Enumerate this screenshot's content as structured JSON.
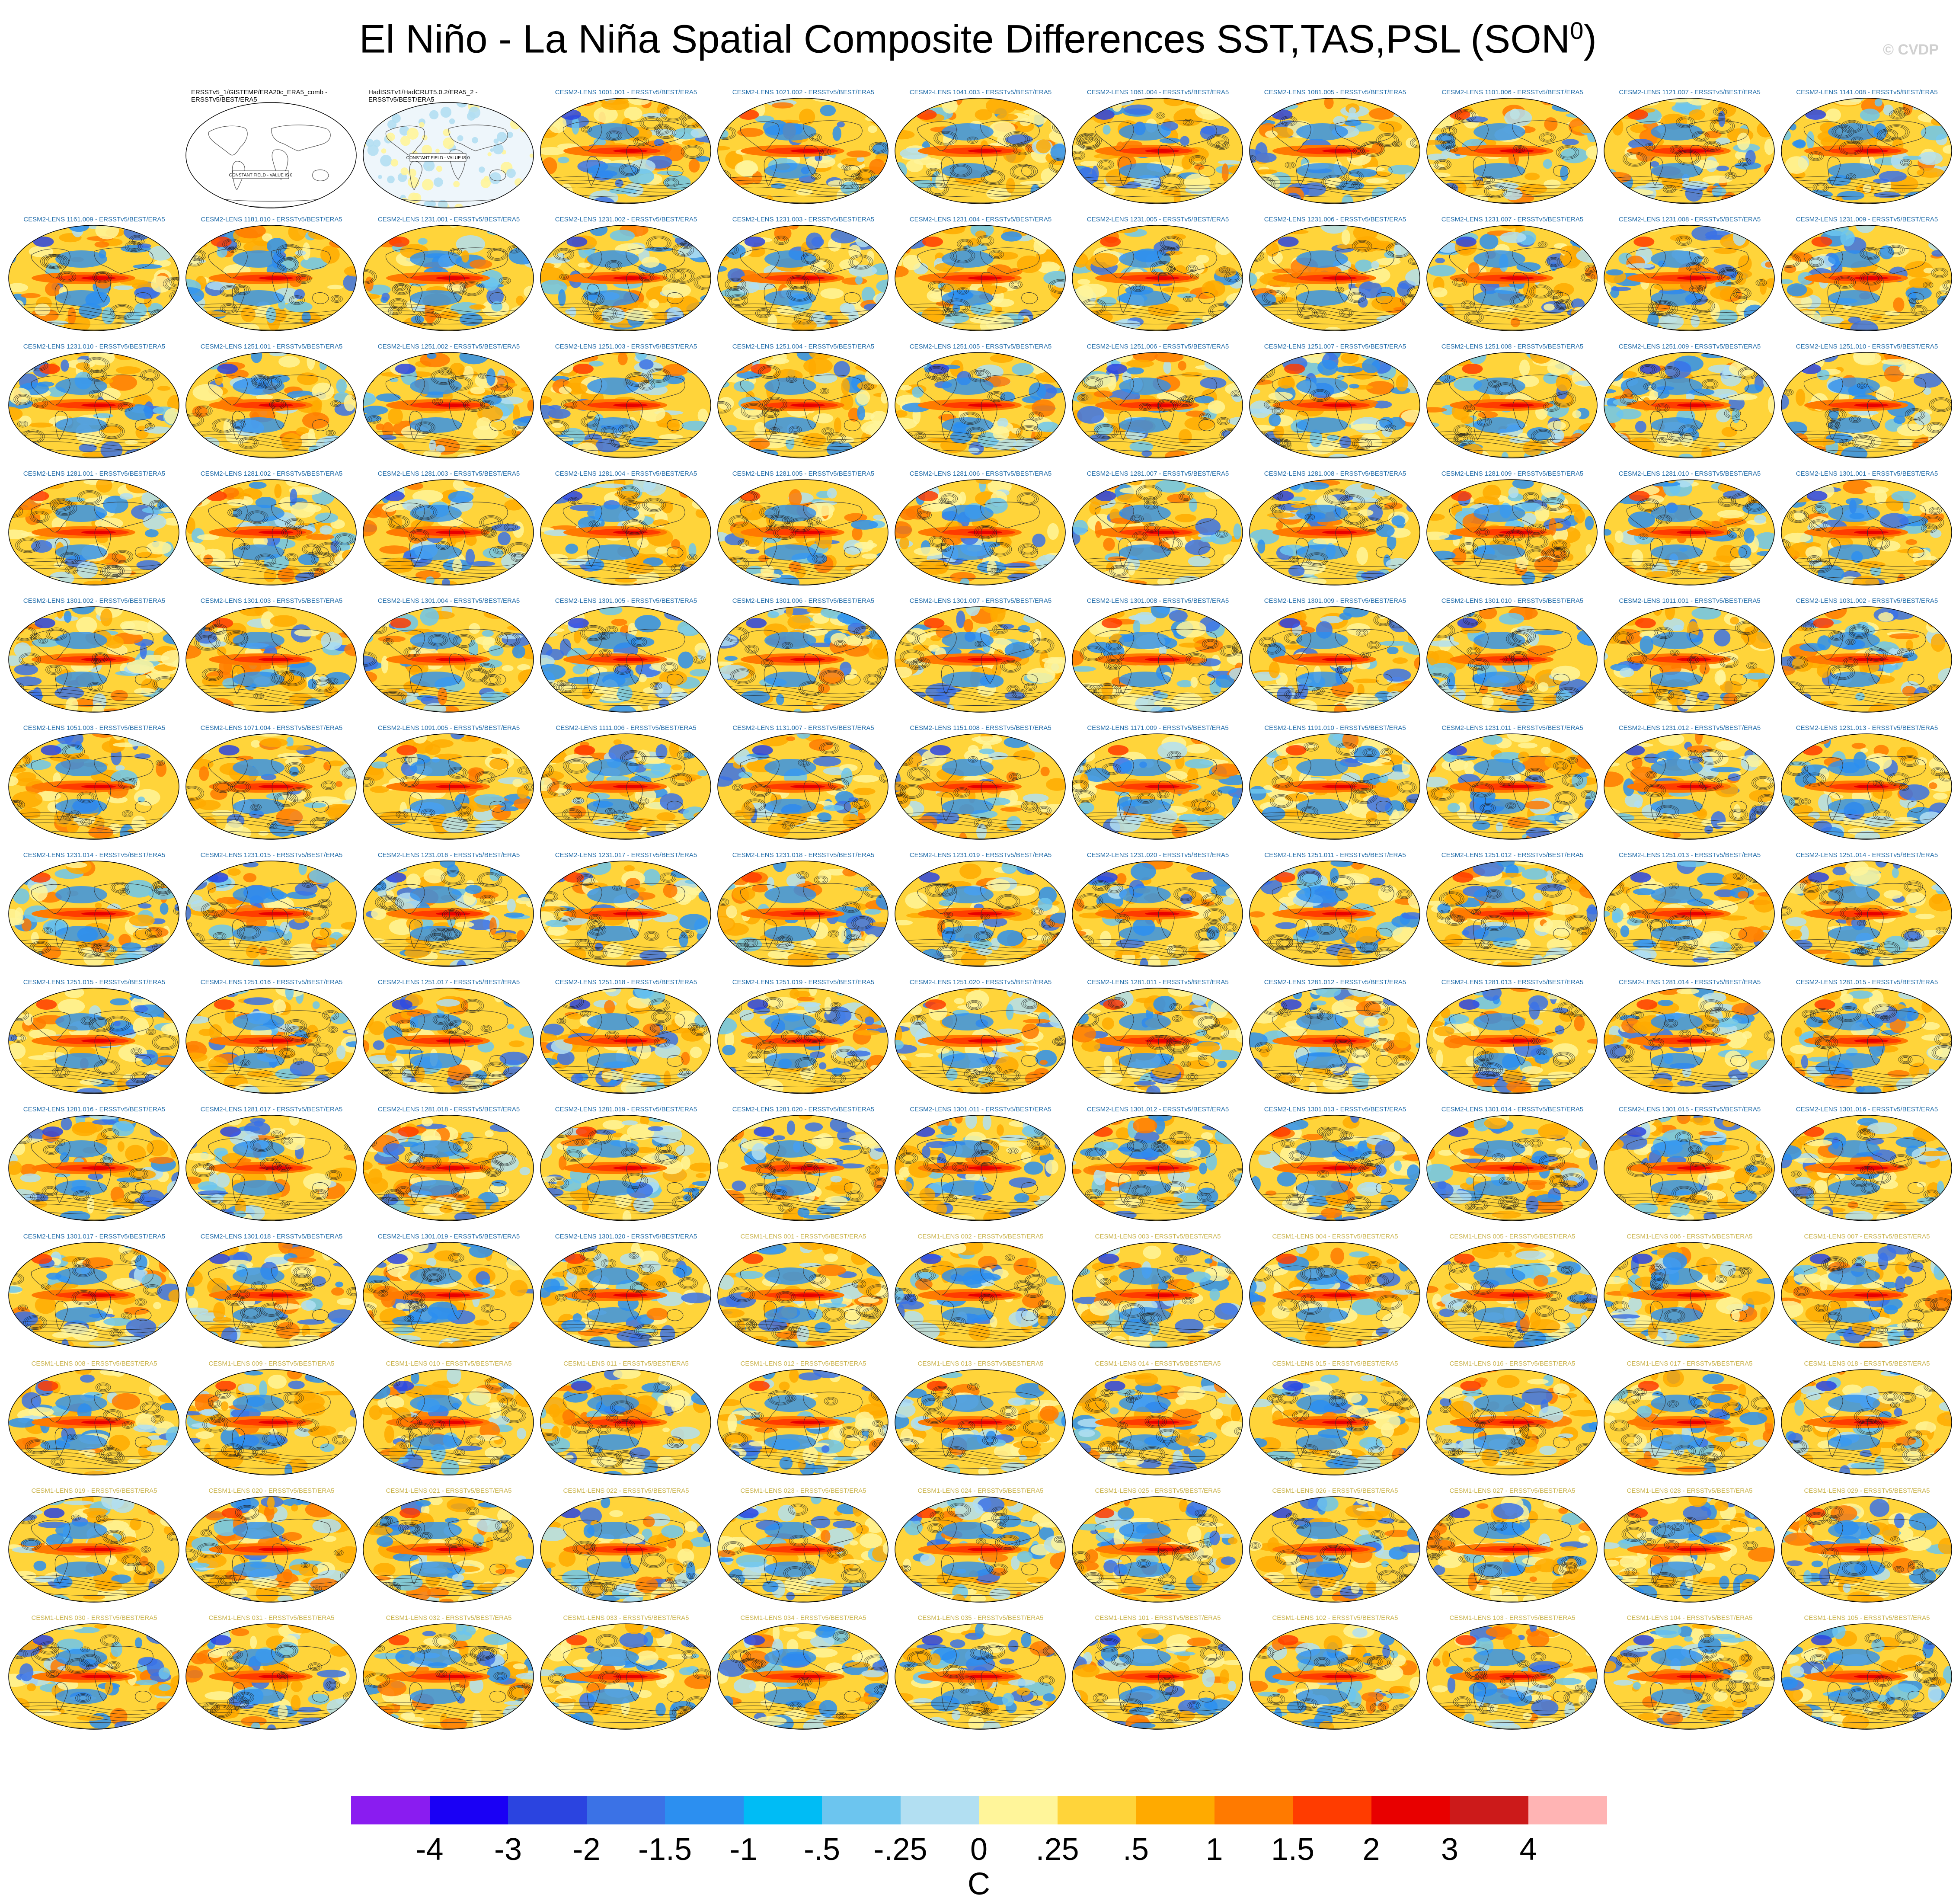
{
  "title": "El Niño - La Niña Spatial Composite Differences SST,TAS,PSL (SON",
  "title_superscript": "0",
  "title_suffix": ")",
  "watermark": "© CVDP",
  "chart_data": {
    "type": "heatmap",
    "title": "El Niño - La Niña Spatial Composite Differences SST,TAS,PSL (SON0)",
    "panels": [
      {
        "label": "",
        "kind": "blank"
      },
      {
        "label": "ERSSTv5_1/GISTEMP/ERA20c_ERA5_comb - ERSSTv5/BEST/ERA5",
        "kind": "obs",
        "note": "CONSTANT FIELD - VALUE IS 0"
      },
      {
        "label": "HadISSTv1/HadCRUT5.0.2/ERA5_2 - ERSSTv5/BEST/ERA5",
        "kind": "obs2",
        "note": "CONSTANT FIELD - VALUE IS 0"
      },
      {
        "label": "CESM2-LENS 1001.001 - ERSSTv5/BEST/ERA5",
        "kind": "cesm2"
      },
      {
        "label": "CESM2-LENS 1021.002 - ERSSTv5/BEST/ERA5",
        "kind": "cesm2"
      },
      {
        "label": "CESM2-LENS 1041.003 - ERSSTv5/BEST/ERA5",
        "kind": "cesm2"
      },
      {
        "label": "CESM2-LENS 1061.004 - ERSSTv5/BEST/ERA5",
        "kind": "cesm2"
      },
      {
        "label": "CESM2-LENS 1081.005 - ERSSTv5/BEST/ERA5",
        "kind": "cesm2"
      },
      {
        "label": "CESM2-LENS 1101.006 - ERSSTv5/BEST/ERA5",
        "kind": "cesm2"
      },
      {
        "label": "CESM2-LENS 1121.007 - ERSSTv5/BEST/ERA5",
        "kind": "cesm2"
      },
      {
        "label": "CESM2-LENS 1141.008 - ERSSTv5/BEST/ERA5",
        "kind": "cesm2"
      },
      {
        "label": "CESM2-LENS 1161.009 - ERSSTv5/BEST/ERA5",
        "kind": "cesm2"
      },
      {
        "label": "CESM2-LENS 1181.010 - ERSSTv5/BEST/ERA5",
        "kind": "cesm2"
      },
      {
        "label": "CESM2-LENS 1231.001 - ERSSTv5/BEST/ERA5",
        "kind": "cesm2"
      },
      {
        "label": "CESM2-LENS 1231.002 - ERSSTv5/BEST/ERA5",
        "kind": "cesm2"
      },
      {
        "label": "CESM2-LENS 1231.003 - ERSSTv5/BEST/ERA5",
        "kind": "cesm2"
      },
      {
        "label": "CESM2-LENS 1231.004 - ERSSTv5/BEST/ERA5",
        "kind": "cesm2"
      },
      {
        "label": "CESM2-LENS 1231.005 - ERSSTv5/BEST/ERA5",
        "kind": "cesm2"
      },
      {
        "label": "CESM2-LENS 1231.006 - ERSSTv5/BEST/ERA5",
        "kind": "cesm2"
      },
      {
        "label": "CESM2-LENS 1231.007 - ERSSTv5/BEST/ERA5",
        "kind": "cesm2"
      },
      {
        "label": "CESM2-LENS 1231.008 - ERSSTv5/BEST/ERA5",
        "kind": "cesm2"
      },
      {
        "label": "CESM2-LENS 1231.009 - ERSSTv5/BEST/ERA5",
        "kind": "cesm2"
      },
      {
        "label": "CESM2-LENS 1231.010 - ERSSTv5/BEST/ERA5",
        "kind": "cesm2"
      },
      {
        "label": "CESM2-LENS 1251.001 - ERSSTv5/BEST/ERA5",
        "kind": "cesm2"
      },
      {
        "label": "CESM2-LENS 1251.002 - ERSSTv5/BEST/ERA5",
        "kind": "cesm2"
      },
      {
        "label": "CESM2-LENS 1251.003 - ERSSTv5/BEST/ERA5",
        "kind": "cesm2"
      },
      {
        "label": "CESM2-LENS 1251.004 - ERSSTv5/BEST/ERA5",
        "kind": "cesm2"
      },
      {
        "label": "CESM2-LENS 1251.005 - ERSSTv5/BEST/ERA5",
        "kind": "cesm2"
      },
      {
        "label": "CESM2-LENS 1251.006 - ERSSTv5/BEST/ERA5",
        "kind": "cesm2"
      },
      {
        "label": "CESM2-LENS 1251.007 - ERSSTv5/BEST/ERA5",
        "kind": "cesm2"
      },
      {
        "label": "CESM2-LENS 1251.008 - ERSSTv5/BEST/ERA5",
        "kind": "cesm2"
      },
      {
        "label": "CESM2-LENS 1251.009 - ERSSTv5/BEST/ERA5",
        "kind": "cesm2"
      },
      {
        "label": "CESM2-LENS 1251.010 - ERSSTv5/BEST/ERA5",
        "kind": "cesm2"
      },
      {
        "label": "CESM2-LENS 1281.001 - ERSSTv5/BEST/ERA5",
        "kind": "cesm2"
      },
      {
        "label": "CESM2-LENS 1281.002 - ERSSTv5/BEST/ERA5",
        "kind": "cesm2"
      },
      {
        "label": "CESM2-LENS 1281.003 - ERSSTv5/BEST/ERA5",
        "kind": "cesm2"
      },
      {
        "label": "CESM2-LENS 1281.004 - ERSSTv5/BEST/ERA5",
        "kind": "cesm2"
      },
      {
        "label": "CESM2-LENS 1281.005 - ERSSTv5/BEST/ERA5",
        "kind": "cesm2"
      },
      {
        "label": "CESM2-LENS 1281.006 - ERSSTv5/BEST/ERA5",
        "kind": "cesm2"
      },
      {
        "label": "CESM2-LENS 1281.007 - ERSSTv5/BEST/ERA5",
        "kind": "cesm2"
      },
      {
        "label": "CESM2-LENS 1281.008 - ERSSTv5/BEST/ERA5",
        "kind": "cesm2"
      },
      {
        "label": "CESM2-LENS 1281.009 - ERSSTv5/BEST/ERA5",
        "kind": "cesm2"
      },
      {
        "label": "CESM2-LENS 1281.010 - ERSSTv5/BEST/ERA5",
        "kind": "cesm2"
      },
      {
        "label": "CESM2-LENS 1301.001 - ERSSTv5/BEST/ERA5",
        "kind": "cesm2"
      },
      {
        "label": "CESM2-LENS 1301.002 - ERSSTv5/BEST/ERA5",
        "kind": "cesm2"
      },
      {
        "label": "CESM2-LENS 1301.003 - ERSSTv5/BEST/ERA5",
        "kind": "cesm2"
      },
      {
        "label": "CESM2-LENS 1301.004 - ERSSTv5/BEST/ERA5",
        "kind": "cesm2"
      },
      {
        "label": "CESM2-LENS 1301.005 - ERSSTv5/BEST/ERA5",
        "kind": "cesm2"
      },
      {
        "label": "CESM2-LENS 1301.006 - ERSSTv5/BEST/ERA5",
        "kind": "cesm2"
      },
      {
        "label": "CESM2-LENS 1301.007 - ERSSTv5/BEST/ERA5",
        "kind": "cesm2"
      },
      {
        "label": "CESM2-LENS 1301.008 - ERSSTv5/BEST/ERA5",
        "kind": "cesm2"
      },
      {
        "label": "CESM2-LENS 1301.009 - ERSSTv5/BEST/ERA5",
        "kind": "cesm2"
      },
      {
        "label": "CESM2-LENS 1301.010 - ERSSTv5/BEST/ERA5",
        "kind": "cesm2"
      },
      {
        "label": "CESM2-LENS 1011.001 - ERSSTv5/BEST/ERA5",
        "kind": "cesm2"
      },
      {
        "label": "CESM2-LENS 1031.002 - ERSSTv5/BEST/ERA5",
        "kind": "cesm2"
      },
      {
        "label": "CESM2-LENS 1051.003 - ERSSTv5/BEST/ERA5",
        "kind": "cesm2"
      },
      {
        "label": "CESM2-LENS 1071.004 - ERSSTv5/BEST/ERA5",
        "kind": "cesm2"
      },
      {
        "label": "CESM2-LENS 1091.005 - ERSSTv5/BEST/ERA5",
        "kind": "cesm2"
      },
      {
        "label": "CESM2-LENS 1111.006 - ERSSTv5/BEST/ERA5",
        "kind": "cesm2"
      },
      {
        "label": "CESM2-LENS 1131.007 - ERSSTv5/BEST/ERA5",
        "kind": "cesm2"
      },
      {
        "label": "CESM2-LENS 1151.008 - ERSSTv5/BEST/ERA5",
        "kind": "cesm2"
      },
      {
        "label": "CESM2-LENS 1171.009 - ERSSTv5/BEST/ERA5",
        "kind": "cesm2"
      },
      {
        "label": "CESM2-LENS 1191.010 - ERSSTv5/BEST/ERA5",
        "kind": "cesm2"
      },
      {
        "label": "CESM2-LENS 1231.011 - ERSSTv5/BEST/ERA5",
        "kind": "cesm2"
      },
      {
        "label": "CESM2-LENS 1231.012 - ERSSTv5/BEST/ERA5",
        "kind": "cesm2"
      },
      {
        "label": "CESM2-LENS 1231.013 - ERSSTv5/BEST/ERA5",
        "kind": "cesm2"
      },
      {
        "label": "CESM2-LENS 1231.014 - ERSSTv5/BEST/ERA5",
        "kind": "cesm2"
      },
      {
        "label": "CESM2-LENS 1231.015 - ERSSTv5/BEST/ERA5",
        "kind": "cesm2"
      },
      {
        "label": "CESM2-LENS 1231.016 - ERSSTv5/BEST/ERA5",
        "kind": "cesm2"
      },
      {
        "label": "CESM2-LENS 1231.017 - ERSSTv5/BEST/ERA5",
        "kind": "cesm2"
      },
      {
        "label": "CESM2-LENS 1231.018 - ERSSTv5/BEST/ERA5",
        "kind": "cesm2"
      },
      {
        "label": "CESM2-LENS 1231.019 - ERSSTv5/BEST/ERA5",
        "kind": "cesm2"
      },
      {
        "label": "CESM2-LENS 1231.020 - ERSSTv5/BEST/ERA5",
        "kind": "cesm2"
      },
      {
        "label": "CESM2-LENS 1251.011 - ERSSTv5/BEST/ERA5",
        "kind": "cesm2"
      },
      {
        "label": "CESM2-LENS 1251.012 - ERSSTv5/BEST/ERA5",
        "kind": "cesm2"
      },
      {
        "label": "CESM2-LENS 1251.013 - ERSSTv5/BEST/ERA5",
        "kind": "cesm2"
      },
      {
        "label": "CESM2-LENS 1251.014 - ERSSTv5/BEST/ERA5",
        "kind": "cesm2"
      },
      {
        "label": "CESM2-LENS 1251.015 - ERSSTv5/BEST/ERA5",
        "kind": "cesm2"
      },
      {
        "label": "CESM2-LENS 1251.016 - ERSSTv5/BEST/ERA5",
        "kind": "cesm2"
      },
      {
        "label": "CESM2-LENS 1251.017 - ERSSTv5/BEST/ERA5",
        "kind": "cesm2"
      },
      {
        "label": "CESM2-LENS 1251.018 - ERSSTv5/BEST/ERA5",
        "kind": "cesm2"
      },
      {
        "label": "CESM2-LENS 1251.019 - ERSSTv5/BEST/ERA5",
        "kind": "cesm2"
      },
      {
        "label": "CESM2-LENS 1251.020 - ERSSTv5/BEST/ERA5",
        "kind": "cesm2"
      },
      {
        "label": "CESM2-LENS 1281.011 - ERSSTv5/BEST/ERA5",
        "kind": "cesm2"
      },
      {
        "label": "CESM2-LENS 1281.012 - ERSSTv5/BEST/ERA5",
        "kind": "cesm2"
      },
      {
        "label": "CESM2-LENS 1281.013 - ERSSTv5/BEST/ERA5",
        "kind": "cesm2"
      },
      {
        "label": "CESM2-LENS 1281.014 - ERSSTv5/BEST/ERA5",
        "kind": "cesm2"
      },
      {
        "label": "CESM2-LENS 1281.015 - ERSSTv5/BEST/ERA5",
        "kind": "cesm2"
      },
      {
        "label": "CESM2-LENS 1281.016 - ERSSTv5/BEST/ERA5",
        "kind": "cesm2"
      },
      {
        "label": "CESM2-LENS 1281.017 - ERSSTv5/BEST/ERA5",
        "kind": "cesm2"
      },
      {
        "label": "CESM2-LENS 1281.018 - ERSSTv5/BEST/ERA5",
        "kind": "cesm2"
      },
      {
        "label": "CESM2-LENS 1281.019 - ERSSTv5/BEST/ERA5",
        "kind": "cesm2"
      },
      {
        "label": "CESM2-LENS 1281.020 - ERSSTv5/BEST/ERA5",
        "kind": "cesm2"
      },
      {
        "label": "CESM2-LENS 1301.011 - ERSSTv5/BEST/ERA5",
        "kind": "cesm2"
      },
      {
        "label": "CESM2-LENS 1301.012 - ERSSTv5/BEST/ERA5",
        "kind": "cesm2"
      },
      {
        "label": "CESM2-LENS 1301.013 - ERSSTv5/BEST/ERA5",
        "kind": "cesm2"
      },
      {
        "label": "CESM2-LENS 1301.014 - ERSSTv5/BEST/ERA5",
        "kind": "cesm2"
      },
      {
        "label": "CESM2-LENS 1301.015 - ERSSTv5/BEST/ERA5",
        "kind": "cesm2"
      },
      {
        "label": "CESM2-LENS 1301.016 - ERSSTv5/BEST/ERA5",
        "kind": "cesm2"
      },
      {
        "label": "CESM2-LENS 1301.017 - ERSSTv5/BEST/ERA5",
        "kind": "cesm2"
      },
      {
        "label": "CESM2-LENS 1301.018 - ERSSTv5/BEST/ERA5",
        "kind": "cesm2"
      },
      {
        "label": "CESM2-LENS 1301.019 - ERSSTv5/BEST/ERA5",
        "kind": "cesm2"
      },
      {
        "label": "CESM2-LENS 1301.020 - ERSSTv5/BEST/ERA5",
        "kind": "cesm2"
      },
      {
        "label": "CESM1-LENS 001 - ERSSTv5/BEST/ERA5",
        "kind": "cesm1"
      },
      {
        "label": "CESM1-LENS 002 - ERSSTv5/BEST/ERA5",
        "kind": "cesm1"
      },
      {
        "label": "CESM1-LENS 003 - ERSSTv5/BEST/ERA5",
        "kind": "cesm1"
      },
      {
        "label": "CESM1-LENS 004 - ERSSTv5/BEST/ERA5",
        "kind": "cesm1"
      },
      {
        "label": "CESM1-LENS 005 - ERSSTv5/BEST/ERA5",
        "kind": "cesm1"
      },
      {
        "label": "CESM1-LENS 006 - ERSSTv5/BEST/ERA5",
        "kind": "cesm1"
      },
      {
        "label": "CESM1-LENS 007 - ERSSTv5/BEST/ERA5",
        "kind": "cesm1"
      },
      {
        "label": "CESM1-LENS 008 - ERSSTv5/BEST/ERA5",
        "kind": "cesm1"
      },
      {
        "label": "CESM1-LENS 009 - ERSSTv5/BEST/ERA5",
        "kind": "cesm1"
      },
      {
        "label": "CESM1-LENS 010 - ERSSTv5/BEST/ERA5",
        "kind": "cesm1"
      },
      {
        "label": "CESM1-LENS 011 - ERSSTv5/BEST/ERA5",
        "kind": "cesm1"
      },
      {
        "label": "CESM1-LENS 012 - ERSSTv5/BEST/ERA5",
        "kind": "cesm1"
      },
      {
        "label": "CESM1-LENS 013 - ERSSTv5/BEST/ERA5",
        "kind": "cesm1"
      },
      {
        "label": "CESM1-LENS 014 - ERSSTv5/BEST/ERA5",
        "kind": "cesm1"
      },
      {
        "label": "CESM1-LENS 015 - ERSSTv5/BEST/ERA5",
        "kind": "cesm1"
      },
      {
        "label": "CESM1-LENS 016 - ERSSTv5/BEST/ERA5",
        "kind": "cesm1"
      },
      {
        "label": "CESM1-LENS 017 - ERSSTv5/BEST/ERA5",
        "kind": "cesm1"
      },
      {
        "label": "CESM1-LENS 018 - ERSSTv5/BEST/ERA5",
        "kind": "cesm1"
      },
      {
        "label": "CESM1-LENS 019 - ERSSTv5/BEST/ERA5",
        "kind": "cesm1"
      },
      {
        "label": "CESM1-LENS 020 - ERSSTv5/BEST/ERA5",
        "kind": "cesm1"
      },
      {
        "label": "CESM1-LENS 021 - ERSSTv5/BEST/ERA5",
        "kind": "cesm1"
      },
      {
        "label": "CESM1-LENS 022 - ERSSTv5/BEST/ERA5",
        "kind": "cesm1"
      },
      {
        "label": "CESM1-LENS 023 - ERSSTv5/BEST/ERA5",
        "kind": "cesm1"
      },
      {
        "label": "CESM1-LENS 024 - ERSSTv5/BEST/ERA5",
        "kind": "cesm1"
      },
      {
        "label": "CESM1-LENS 025 - ERSSTv5/BEST/ERA5",
        "kind": "cesm1"
      },
      {
        "label": "CESM1-LENS 026 - ERSSTv5/BEST/ERA5",
        "kind": "cesm1"
      },
      {
        "label": "CESM1-LENS 027 - ERSSTv5/BEST/ERA5",
        "kind": "cesm1"
      },
      {
        "label": "CESM1-LENS 028 - ERSSTv5/BEST/ERA5",
        "kind": "cesm1"
      },
      {
        "label": "CESM1-LENS 029 - ERSSTv5/BEST/ERA5",
        "kind": "cesm1"
      },
      {
        "label": "CESM1-LENS 030 - ERSSTv5/BEST/ERA5",
        "kind": "cesm1"
      },
      {
        "label": "CESM1-LENS 031 - ERSSTv5/BEST/ERA5",
        "kind": "cesm1"
      },
      {
        "label": "CESM1-LENS 032 - ERSSTv5/BEST/ERA5",
        "kind": "cesm1"
      },
      {
        "label": "CESM1-LENS 033 - ERSSTv5/BEST/ERA5",
        "kind": "cesm1"
      },
      {
        "label": "CESM1-LENS 034 - ERSSTv5/BEST/ERA5",
        "kind": "cesm1"
      },
      {
        "label": "CESM1-LENS 035 - ERSSTv5/BEST/ERA5",
        "kind": "cesm1"
      },
      {
        "label": "CESM1-LENS 101 - ERSSTv5/BEST/ERA5",
        "kind": "cesm1"
      },
      {
        "label": "CESM1-LENS 102 - ERSSTv5/BEST/ERA5",
        "kind": "cesm1"
      },
      {
        "label": "CESM1-LENS 103 - ERSSTv5/BEST/ERA5",
        "kind": "cesm1"
      },
      {
        "label": "CESM1-LENS 104 - ERSSTv5/BEST/ERA5",
        "kind": "cesm1"
      },
      {
        "label": "CESM1-LENS 105 - ERSSTv5/BEST/ERA5",
        "kind": "cesm1"
      }
    ],
    "colorbar": {
      "unit": "C",
      "tick_labels": [
        "-4",
        "-3",
        "-2",
        "-1.5",
        "-1",
        "-.5",
        "-.25",
        "0",
        ".25",
        ".5",
        "1",
        "1.5",
        "2",
        "3",
        "4"
      ],
      "colors": [
        "#8a1cf0",
        "#1a00f5",
        "#2b44e0",
        "#3b72e6",
        "#2c8ff0",
        "#00bcf5",
        "#6cc5ef",
        "#b2dff2",
        "#fff59a",
        "#ffd43a",
        "#ffaa00",
        "#ff7a00",
        "#ff3c00",
        "#e80000",
        "#cc1a1a",
        "#ffb4b4"
      ]
    }
  }
}
